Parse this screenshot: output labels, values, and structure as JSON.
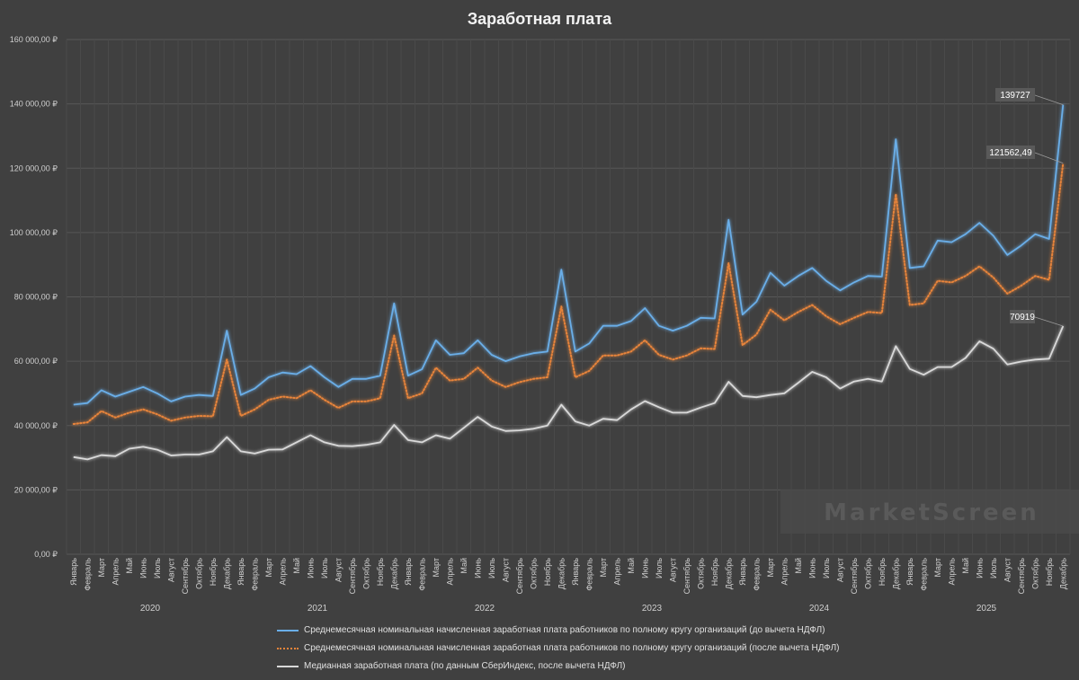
{
  "chart_data": {
    "type": "line",
    "title": "Заработная плата",
    "ylim": [
      0,
      160000
    ],
    "yticks": [
      0,
      20000,
      40000,
      60000,
      80000,
      100000,
      120000,
      140000,
      160000
    ],
    "ytick_labels": [
      "0,00 ₽",
      "20 000,00 ₽",
      "40 000,00 ₽",
      "60 000,00 ₽",
      "80 000,00 ₽",
      "100 000,00 ₽",
      "120 000,00 ₽",
      "140 000,00 ₽",
      "160 000,00 ₽"
    ],
    "months": [
      "Январь",
      "Февраль",
      "Март",
      "Апрель",
      "Май",
      "Июнь",
      "Июль",
      "Август",
      "Сентябрь",
      "Октябрь",
      "Ноябрь",
      "Декабрь"
    ],
    "years": [
      "2020",
      "2021",
      "2022",
      "2023",
      "2024",
      "2025"
    ],
    "watermark": "MarketScreen",
    "series": [
      {
        "name": "Среднемесячная номинальная начисленная заработная плата работников по полному кругу организаций (до вычета НДФЛ)",
        "color": "#6aaee8",
        "style": "solid",
        "values": [
          46500,
          47000,
          51000,
          49000,
          50500,
          52000,
          50000,
          47500,
          49000,
          49500,
          49200,
          69500,
          49500,
          51500,
          55000,
          56500,
          56000,
          58500,
          55000,
          52000,
          54500,
          54500,
          55500,
          78000,
          55500,
          57500,
          66500,
          62000,
          62500,
          66500,
          62000,
          60000,
          61500,
          62500,
          63000,
          88500,
          63000,
          65500,
          71000,
          71000,
          72500,
          76500,
          71000,
          69500,
          71000,
          73500,
          73300,
          104000,
          74500,
          78500,
          87500,
          83500,
          86500,
          89000,
          85000,
          82000,
          84500,
          86500,
          86300,
          129000,
          89000,
          89500,
          97500,
          97000,
          99500,
          103000,
          99000,
          93000,
          96000,
          99500,
          98000,
          139727
        ],
        "end_label": "139727"
      },
      {
        "name": "Среднемесячная номинальная начисленная заработная плата работников по полному кругу организаций (после вычета НДФЛ)",
        "color": "#e8843a",
        "style": "dotted",
        "values": [
          40500,
          41000,
          44500,
          42500,
          44000,
          45000,
          43500,
          41500,
          42500,
          43000,
          42900,
          60500,
          43000,
          45000,
          48000,
          49000,
          48500,
          51000,
          48000,
          45500,
          47500,
          47500,
          48500,
          68000,
          48500,
          50000,
          58000,
          54000,
          54500,
          58000,
          54000,
          52000,
          53500,
          54500,
          55000,
          77000,
          55000,
          57000,
          61800,
          61800,
          63000,
          66500,
          62000,
          60500,
          61800,
          64000,
          63800,
          90500,
          65000,
          68300,
          76000,
          72700,
          75300,
          77500,
          74000,
          71500,
          73500,
          75300,
          75000,
          112000,
          77500,
          78000,
          85000,
          84500,
          86500,
          89500,
          86000,
          81000,
          83500,
          86500,
          85300,
          121562.49
        ],
        "end_label": "121562,49"
      },
      {
        "name": "Медианная заработная плата (по данным СберИндекс, после вычета НДФЛ)",
        "color": "#d9d9d9",
        "style": "solid",
        "values": [
          30200,
          29500,
          30800,
          30500,
          32800,
          33400,
          32500,
          30700,
          31000,
          31000,
          32000,
          36400,
          32000,
          31300,
          32500,
          32600,
          34800,
          37000,
          34800,
          33700,
          33600,
          34000,
          34800,
          40200,
          35500,
          34800,
          37000,
          35900,
          39300,
          42700,
          39700,
          38300,
          38500,
          39000,
          40000,
          46500,
          41300,
          40000,
          42100,
          41700,
          45000,
          47600,
          45700,
          44000,
          44000,
          45600,
          47000,
          53600,
          49200,
          48800,
          49500,
          50000,
          53300,
          56700,
          55000,
          51500,
          53700,
          54500,
          53700,
          64700,
          57600,
          55800,
          58200,
          58200,
          61000,
          66200,
          63900,
          59000,
          59900,
          60500,
          60800,
          70919
        ],
        "end_label": "70919"
      }
    ]
  }
}
